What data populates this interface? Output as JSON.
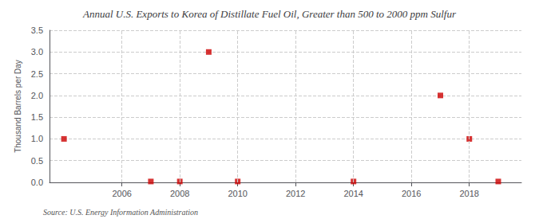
{
  "chart_data": {
    "type": "scatter",
    "title": "Annual U.S. Exports to Korea of Distillate Fuel Oil, Greater than 500 to 2000 ppm Sulfur",
    "y_label": "Thousand Barrels per Day",
    "annotations": [
      "Source: U.S. Energy Information Administration"
    ],
    "x": [
      2004,
      2007,
      2008,
      2009,
      2010,
      2014,
      2017,
      2018,
      2019
    ],
    "values": [
      1.0,
      0.02,
      0.02,
      3.0,
      0.02,
      0.02,
      2.0,
      1.0,
      0.02
    ],
    "color": "#cc0000",
    "marker": "square",
    "xlim": [
      2003.5,
      2019.8
    ],
    "ylim": [
      0.0,
      3.5
    ],
    "xticks": [
      2006,
      2008,
      2010,
      2012,
      2014,
      2016,
      2018
    ],
    "yticks": [
      {
        "value": 0.0,
        "label": "0.0"
      },
      0.5,
      {
        "value": 1.0,
        "label": "1.0"
      },
      1.5,
      {
        "value": 2.0,
        "label": "2.0"
      },
      2.5,
      {
        "value": 3.0,
        "label": "3.0"
      },
      3.5
    ],
    "grid": true
  }
}
